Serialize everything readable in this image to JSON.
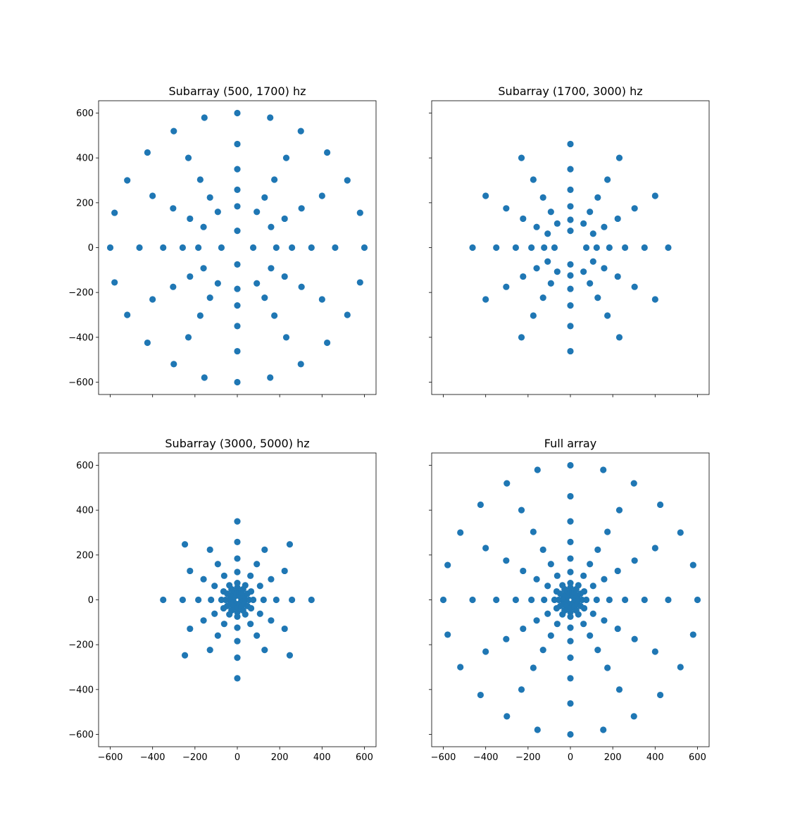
{
  "chart_data": [
    {
      "type": "scatter",
      "title": "Subarray (500, 1700) hz",
      "xlabel": "",
      "ylabel": "",
      "xlim": [
        -655,
        655
      ],
      "ylim": [
        -655,
        655
      ],
      "xticks": [
        -600,
        -400,
        -200,
        0,
        200,
        400,
        600
      ],
      "yticks": [
        -600,
        -400,
        -200,
        0,
        200,
        400,
        600
      ],
      "show_xtick_labels": false,
      "show_ytick_labels": true,
      "grid": false,
      "color": "#1f77b4",
      "series": [
        {
          "rings": [
            {
              "radius": 75,
              "count": 4,
              "phase_deg": 90
            },
            {
              "radius": 184,
              "count": 12,
              "phase_deg": 90
            },
            {
              "radius": 258,
              "count": 12,
              "phase_deg": 90
            },
            {
              "radius": 350,
              "count": 12,
              "phase_deg": 90
            },
            {
              "radius": 462,
              "count": 12,
              "phase_deg": 90
            },
            {
              "radius": 600,
              "count": 12,
              "phase_deg": 90
            },
            {
              "radius": 600,
              "count": 12,
              "phase_deg": 75
            }
          ]
        }
      ]
    },
    {
      "type": "scatter",
      "title": "Subarray (1700, 3000) hz",
      "xlabel": "",
      "ylabel": "",
      "xlim": [
        -655,
        655
      ],
      "ylim": [
        -655,
        655
      ],
      "xticks": [
        -600,
        -400,
        -200,
        0,
        200,
        400,
        600
      ],
      "yticks": [
        -600,
        -400,
        -200,
        0,
        200,
        400,
        600
      ],
      "show_xtick_labels": false,
      "show_ytick_labels": false,
      "grid": false,
      "color": "#1f77b4",
      "series": [
        {
          "rings": [
            {
              "radius": 75,
              "count": 4,
              "phase_deg": 90
            },
            {
              "radius": 124,
              "count": 12,
              "phase_deg": 90
            },
            {
              "radius": 184,
              "count": 12,
              "phase_deg": 90
            },
            {
              "radius": 258,
              "count": 12,
              "phase_deg": 90
            },
            {
              "radius": 350,
              "count": 12,
              "phase_deg": 90
            },
            {
              "radius": 462,
              "count": 12,
              "phase_deg": 90
            }
          ]
        }
      ]
    },
    {
      "type": "scatter",
      "title": "Subarray (3000, 5000) hz",
      "xlabel": "",
      "ylabel": "",
      "xlim": [
        -655,
        655
      ],
      "ylim": [
        -655,
        655
      ],
      "xticks": [
        -600,
        -400,
        -200,
        0,
        200,
        400,
        600
      ],
      "yticks": [
        -600,
        -400,
        -200,
        0,
        200,
        400,
        600
      ],
      "show_xtick_labels": true,
      "show_ytick_labels": true,
      "grid": false,
      "color": "#1f77b4",
      "series": [
        {
          "rings": [
            {
              "radius": 20,
              "count": 12,
              "phase_deg": 90
            },
            {
              "radius": 38,
              "count": 12,
              "phase_deg": 90
            },
            {
              "radius": 55,
              "count": 12,
              "phase_deg": 90
            },
            {
              "radius": 75,
              "count": 12,
              "phase_deg": 90
            },
            {
              "radius": 124,
              "count": 12,
              "phase_deg": 90
            },
            {
              "radius": 184,
              "count": 12,
              "phase_deg": 90
            },
            {
              "radius": 258,
              "count": 12,
              "phase_deg": 90
            },
            {
              "radius": 350,
              "count": 4,
              "phase_deg": 90
            },
            {
              "radius": 350,
              "count": 4,
              "phase_deg": 45
            }
          ]
        }
      ]
    },
    {
      "type": "scatter",
      "title": "Full array",
      "xlabel": "",
      "ylabel": "",
      "xlim": [
        -655,
        655
      ],
      "ylim": [
        -655,
        655
      ],
      "xticks": [
        -600,
        -400,
        -200,
        0,
        200,
        400,
        600
      ],
      "yticks": [
        -600,
        -400,
        -200,
        0,
        200,
        400,
        600
      ],
      "show_xtick_labels": true,
      "show_ytick_labels": false,
      "grid": false,
      "color": "#1f77b4",
      "series": [
        {
          "rings": [
            {
              "radius": 20,
              "count": 12,
              "phase_deg": 90
            },
            {
              "radius": 38,
              "count": 12,
              "phase_deg": 90
            },
            {
              "radius": 55,
              "count": 12,
              "phase_deg": 90
            },
            {
              "radius": 75,
              "count": 12,
              "phase_deg": 90
            },
            {
              "radius": 124,
              "count": 12,
              "phase_deg": 90
            },
            {
              "radius": 184,
              "count": 12,
              "phase_deg": 90
            },
            {
              "radius": 258,
              "count": 12,
              "phase_deg": 90
            },
            {
              "radius": 350,
              "count": 12,
              "phase_deg": 90
            },
            {
              "radius": 462,
              "count": 12,
              "phase_deg": 90
            },
            {
              "radius": 600,
              "count": 12,
              "phase_deg": 90
            },
            {
              "radius": 600,
              "count": 12,
              "phase_deg": 75
            }
          ]
        }
      ]
    }
  ]
}
